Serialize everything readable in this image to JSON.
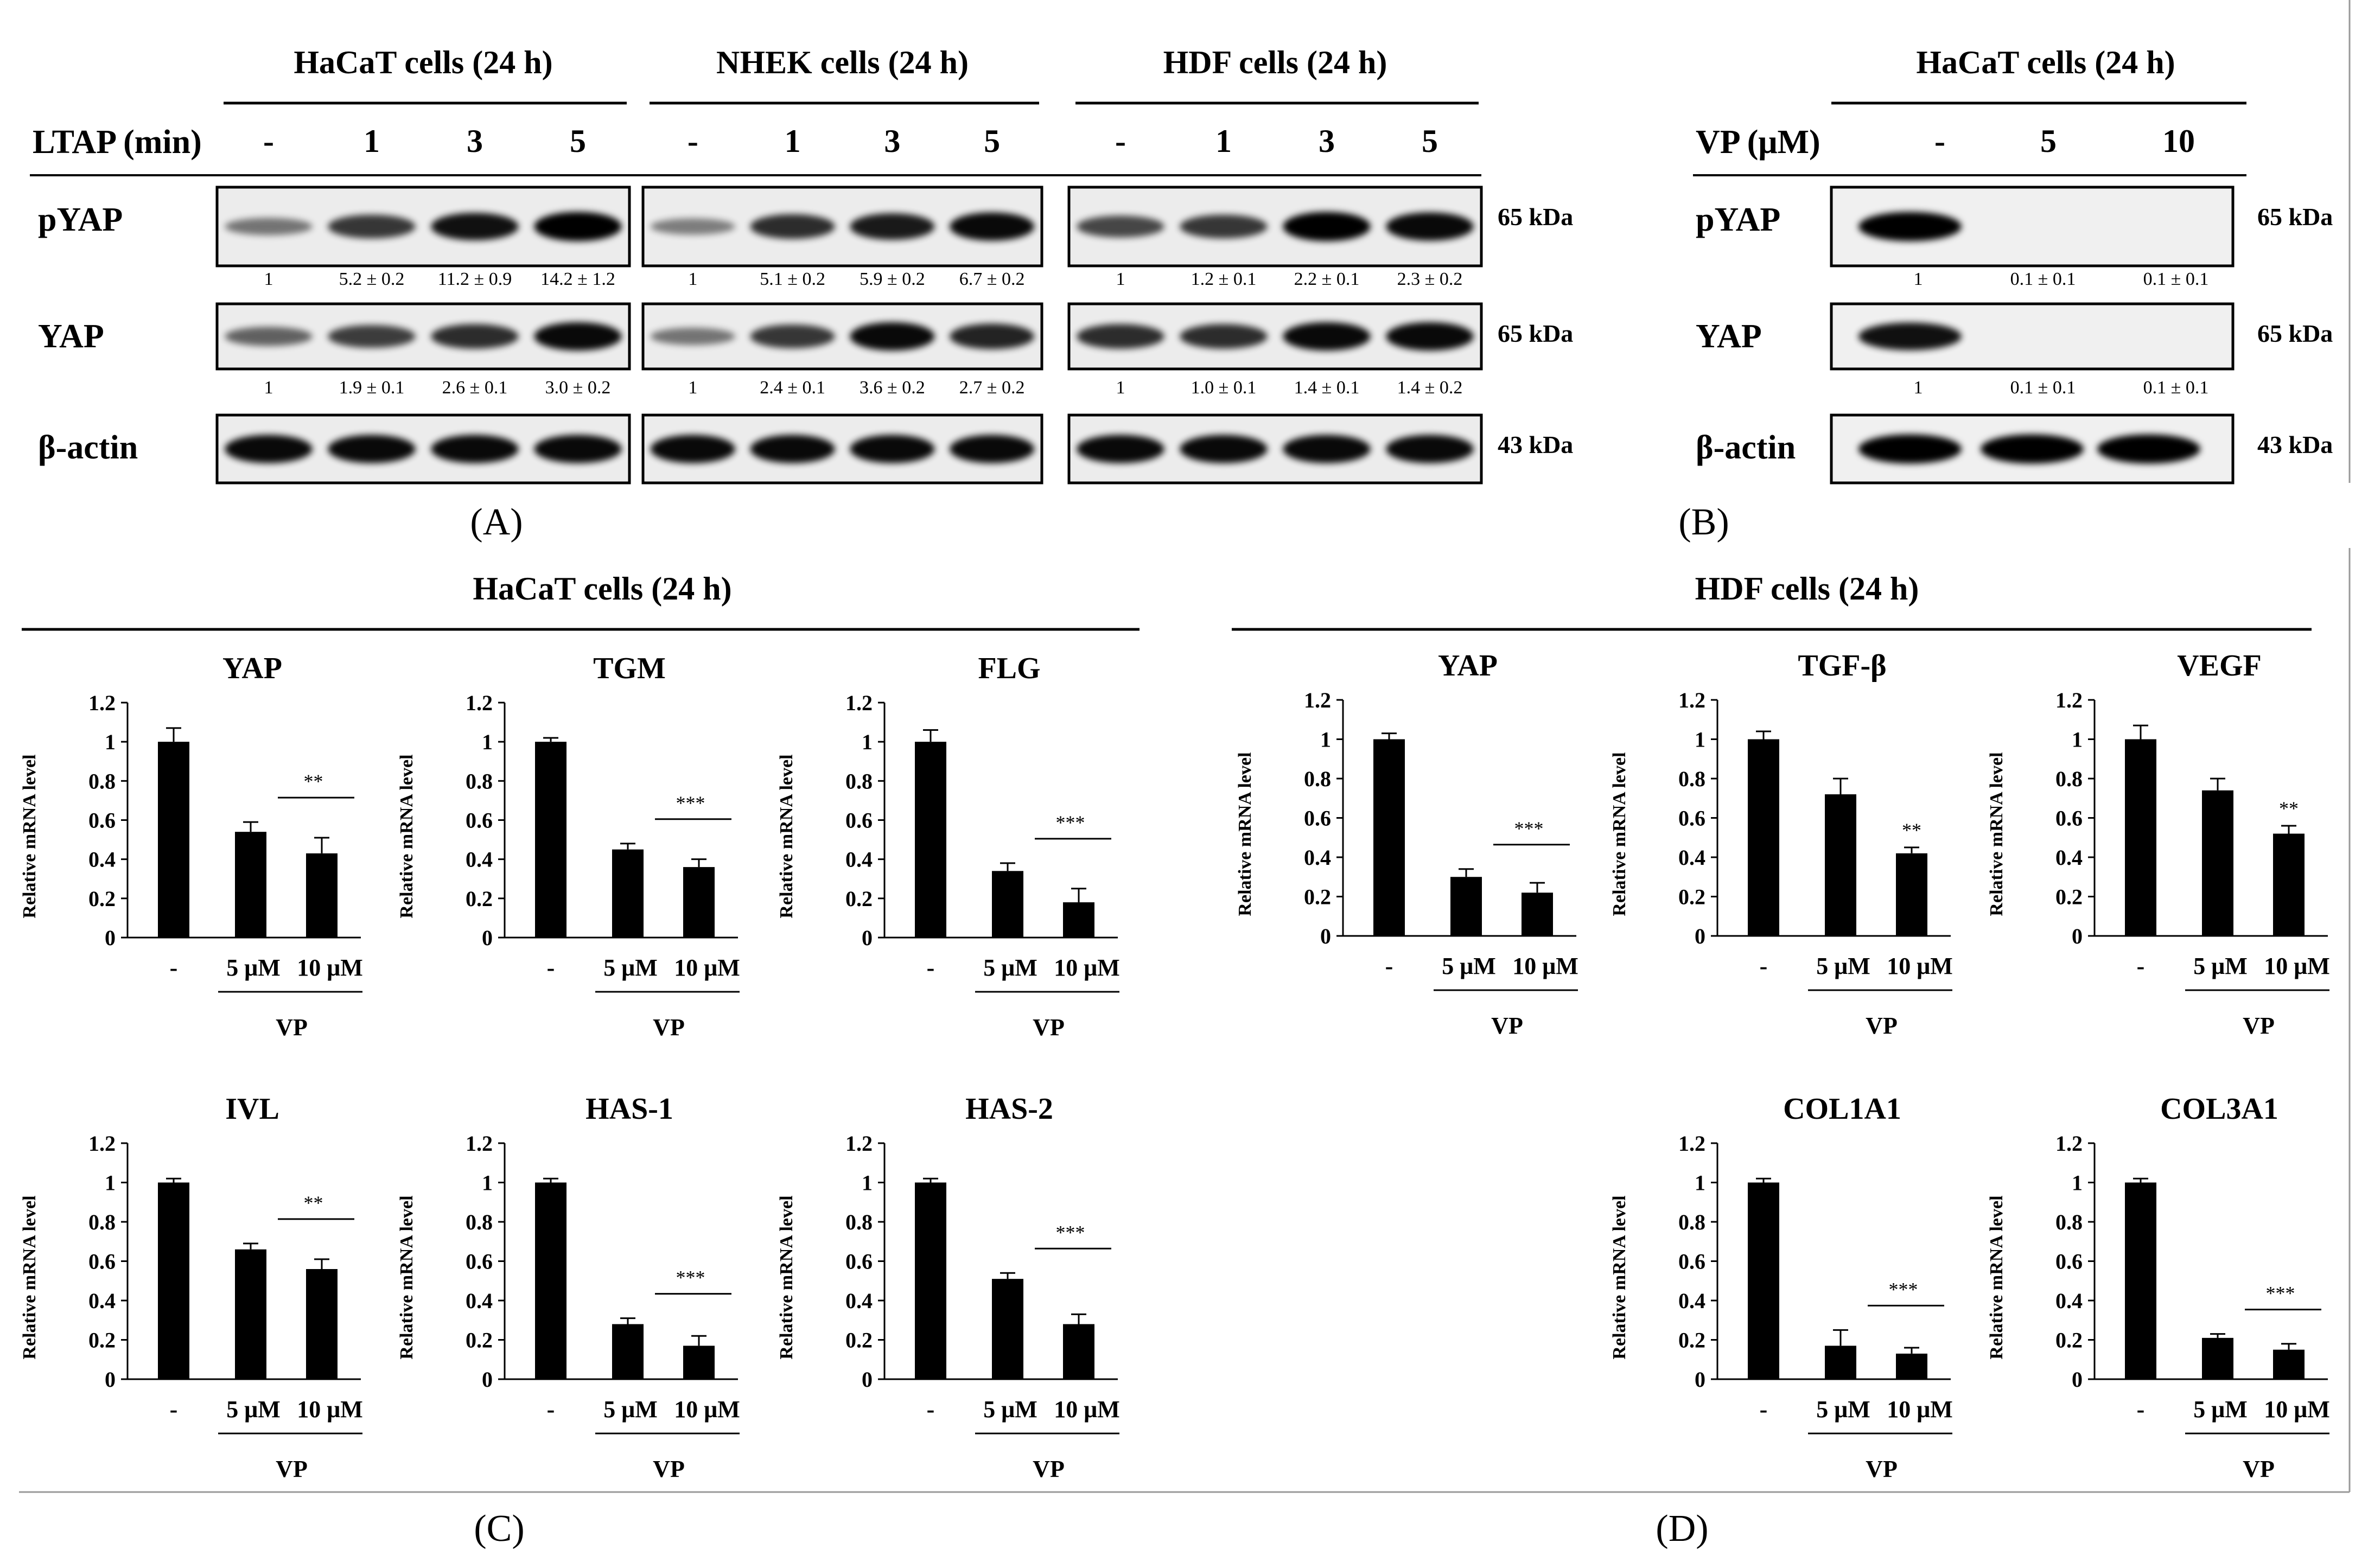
{
  "panelA": {
    "label": "A",
    "row_label": "LTAP (min)",
    "kda": {
      "pyap": "65 kDa",
      "yap": "65 kDa",
      "actin": "43 kDa"
    },
    "row_names": {
      "pyap": "pYAP",
      "yap": "YAP",
      "actin": "β-actin"
    },
    "groups": [
      {
        "title": "HaCaT cells (24 h)",
        "lanes": [
          "-",
          "1",
          "3",
          "5"
        ],
        "pyap_quant": [
          "1",
          "5.2 ± 0.2",
          "11.2 ± 0.9",
          "14.2 ± 1.2"
        ],
        "yap_quant": [
          "1",
          "1.9 ± 0.1",
          "2.6 ± 0.1",
          "3.0 ± 0.2"
        ],
        "pyap_intensity": [
          0.35,
          0.7,
          0.9,
          1.0
        ],
        "yap_intensity": [
          0.45,
          0.65,
          0.75,
          0.95
        ]
      },
      {
        "title": "NHEK cells (24 h)",
        "lanes": [
          "-",
          "1",
          "3",
          "5"
        ],
        "pyap_quant": [
          "1",
          "5.1 ± 0.2",
          "5.9 ± 0.2",
          "6.7 ± 0.2"
        ],
        "yap_quant": [
          "1",
          "2.4 ± 0.1",
          "3.6 ± 0.2",
          "2.7 ± 0.2"
        ],
        "pyap_intensity": [
          0.3,
          0.75,
          0.85,
          0.95
        ],
        "yap_intensity": [
          0.35,
          0.7,
          0.95,
          0.8
        ]
      },
      {
        "title": "HDF cells (24 h)",
        "lanes": [
          "-",
          "1",
          "3",
          "5"
        ],
        "pyap_quant": [
          "1",
          "1.2 ± 0.1",
          "2.2 ± 0.1",
          "2.3 ± 0.2"
        ],
        "yap_quant": [
          "1",
          "1.0 ± 0.1",
          "1.4 ± 0.1",
          "1.4 ± 0.2"
        ],
        "pyap_intensity": [
          0.6,
          0.7,
          1.0,
          0.95
        ],
        "yap_intensity": [
          0.75,
          0.75,
          0.95,
          0.95
        ]
      }
    ]
  },
  "panelB": {
    "label": "B",
    "title": "HaCaT cells (24 h)",
    "row_label": "VP (μM)",
    "lanes": [
      "-",
      "5",
      "10"
    ],
    "pyap_quant": [
      "1",
      "0.1 ± 0.1",
      "0.1 ± 0.1"
    ],
    "yap_quant": [
      "1",
      "0.1 ± 0.1",
      "0.1 ± 0.1"
    ],
    "pyap_intensity": [
      1.0,
      0,
      0
    ],
    "yap_intensity": [
      0.9,
      0,
      0
    ],
    "kda": {
      "pyap": "65 kDa",
      "yap": "65 kDa",
      "actin": "43 kDa"
    },
    "row_names": {
      "pyap": "pYAP",
      "yap": "YAP",
      "actin": "β-actin"
    }
  },
  "panelC": {
    "label": "C",
    "title": "HaCaT cells (24 h)"
  },
  "panelD": {
    "label": "D",
    "title": "HDF cells (24 h)"
  },
  "axis": {
    "ylabel": "Relative mRNA level",
    "ticks": [
      "0",
      "0.2",
      "0.4",
      "0.6",
      "0.8",
      "1",
      "1.2"
    ],
    "categories": [
      "-",
      "5 μM",
      "10 μM"
    ],
    "group_label": "VP"
  },
  "chart_data": [
    {
      "type": "bar",
      "title": "YAP",
      "panel": "C",
      "categories": [
        "-",
        "5 μM",
        "10 μM"
      ],
      "values": [
        1.0,
        0.54,
        0.43
      ],
      "errors": [
        0.07,
        0.05,
        0.08
      ],
      "ylim": [
        0,
        1.2
      ],
      "ylabel": "Relative mRNA level",
      "xlabel": "VP",
      "sig": "**",
      "sig_type": "line"
    },
    {
      "type": "bar",
      "title": "TGM",
      "panel": "C",
      "categories": [
        "-",
        "5 μM",
        "10 μM"
      ],
      "values": [
        1.0,
        0.45,
        0.36
      ],
      "errors": [
        0.02,
        0.03,
        0.04
      ],
      "ylim": [
        0,
        1.2
      ],
      "ylabel": "Relative mRNA level",
      "xlabel": "VP",
      "sig": "***",
      "sig_type": "line"
    },
    {
      "type": "bar",
      "title": "FLG",
      "panel": "C",
      "categories": [
        "-",
        "5 μM",
        "10 μM"
      ],
      "values": [
        1.0,
        0.34,
        0.18
      ],
      "errors": [
        0.06,
        0.04,
        0.07
      ],
      "ylim": [
        0,
        1.2
      ],
      "ylabel": "Relative mRNA level",
      "xlabel": "VP",
      "sig": "***",
      "sig_type": "line"
    },
    {
      "type": "bar",
      "title": "IVL",
      "panel": "C",
      "categories": [
        "-",
        "5 μM",
        "10 μM"
      ],
      "values": [
        1.0,
        0.66,
        0.56
      ],
      "errors": [
        0.02,
        0.03,
        0.05
      ],
      "ylim": [
        0,
        1.2
      ],
      "ylabel": "Relative mRNA level",
      "xlabel": "VP",
      "sig": "**",
      "sig_type": "line"
    },
    {
      "type": "bar",
      "title": "HAS-1",
      "panel": "C",
      "categories": [
        "-",
        "5 μM",
        "10 μM"
      ],
      "values": [
        1.0,
        0.28,
        0.17
      ],
      "errors": [
        0.02,
        0.03,
        0.05
      ],
      "ylim": [
        0,
        1.2
      ],
      "ylabel": "Relative mRNA level",
      "xlabel": "VP",
      "sig": "***",
      "sig_type": "line"
    },
    {
      "type": "bar",
      "title": "HAS-2",
      "panel": "C",
      "categories": [
        "-",
        "5 μM",
        "10 μM"
      ],
      "values": [
        1.0,
        0.51,
        0.28
      ],
      "errors": [
        0.02,
        0.03,
        0.05
      ],
      "ylim": [
        0,
        1.2
      ],
      "ylabel": "Relative mRNA level",
      "xlabel": "VP",
      "sig": "***",
      "sig_type": "line"
    },
    {
      "type": "bar",
      "title": "YAP",
      "panel": "D",
      "categories": [
        "-",
        "5 μM",
        "10 μM"
      ],
      "values": [
        1.0,
        0.3,
        0.22
      ],
      "errors": [
        0.03,
        0.04,
        0.05
      ],
      "ylim": [
        0,
        1.2
      ],
      "ylabel": "Relative mRNA level",
      "xlabel": "VP",
      "sig": "***",
      "sig_type": "line"
    },
    {
      "type": "bar",
      "title": "TGF-β",
      "panel": "D",
      "categories": [
        "-",
        "5 μM",
        "10 μM"
      ],
      "values": [
        1.0,
        0.72,
        0.42
      ],
      "errors": [
        0.04,
        0.08,
        0.03
      ],
      "ylim": [
        0,
        1.2
      ],
      "ylabel": "Relative mRNA level",
      "xlabel": "VP",
      "sig": "**",
      "sig_type": "above"
    },
    {
      "type": "bar",
      "title": "VEGF",
      "panel": "D",
      "categories": [
        "-",
        "5 μM",
        "10 μM"
      ],
      "values": [
        1.0,
        0.74,
        0.52
      ],
      "errors": [
        0.07,
        0.06,
        0.04
      ],
      "ylim": [
        0,
        1.2
      ],
      "ylabel": "Relative mRNA level",
      "xlabel": "VP",
      "sig": "**",
      "sig_type": "above"
    },
    {
      "type": "bar",
      "title": "COL1A1",
      "panel": "D",
      "categories": [
        "-",
        "5 μM",
        "10 μM"
      ],
      "values": [
        1.0,
        0.17,
        0.13
      ],
      "errors": [
        0.02,
        0.08,
        0.03
      ],
      "ylim": [
        0,
        1.2
      ],
      "ylabel": "Relative mRNA level",
      "xlabel": "VP",
      "sig": "***",
      "sig_type": "line"
    },
    {
      "type": "bar",
      "title": "COL3A1",
      "panel": "D",
      "categories": [
        "-",
        "5 μM",
        "10 μM"
      ],
      "values": [
        1.0,
        0.21,
        0.15
      ],
      "errors": [
        0.02,
        0.02,
        0.03
      ],
      "ylim": [
        0,
        1.2
      ],
      "ylabel": "Relative mRNA level",
      "xlabel": "VP",
      "sig": "***",
      "sig_type": "line"
    }
  ]
}
